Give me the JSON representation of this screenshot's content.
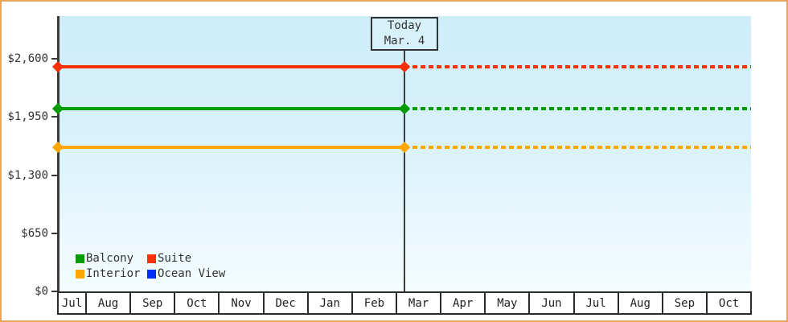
{
  "chart_data": {
    "type": "line",
    "title": "",
    "description": "Cruise cabin price history chart: flat price lines per cabin category, solid up to today then dashed projection",
    "months": [
      "Jul",
      "Aug",
      "Sep",
      "Oct",
      "Nov",
      "Dec",
      "Jan",
      "Feb",
      "Mar",
      "Apr",
      "May",
      "Jun",
      "Jul",
      "Aug",
      "Sep",
      "Oct"
    ],
    "y_axis": {
      "tick_labels": [
        "$0",
        "$650",
        "$1,300",
        "$1,950",
        "$2,600"
      ],
      "tick_values": [
        0,
        650,
        1300,
        1950,
        2600
      ],
      "ylim": [
        0,
        2600
      ],
      "currency": "USD"
    },
    "series": [
      {
        "name": "Balcony",
        "color": "#009c00",
        "value": 2040,
        "line_visible": true
      },
      {
        "name": "Suite",
        "color": "#f93005",
        "value": 2510,
        "line_visible": true
      },
      {
        "name": "Interior",
        "color": "#ffa700",
        "value": 1610,
        "line_visible": true
      },
      {
        "name": "Ocean View",
        "color": "#0030f8",
        "value": null,
        "line_visible": false
      }
    ],
    "today_annotation": {
      "line1": "Today",
      "line2": "Mar. 4",
      "month": "Mar",
      "day": 4
    },
    "legend_position": "bottom-left",
    "style": {
      "frame_border_color": "#e9a55e",
      "plot_bg_top": "#cdedf9",
      "plot_bg_bottom": "#f4fcff",
      "axis_color": "#3a3a3a",
      "solid_before_today": true,
      "dashed_after_today": true
    }
  }
}
